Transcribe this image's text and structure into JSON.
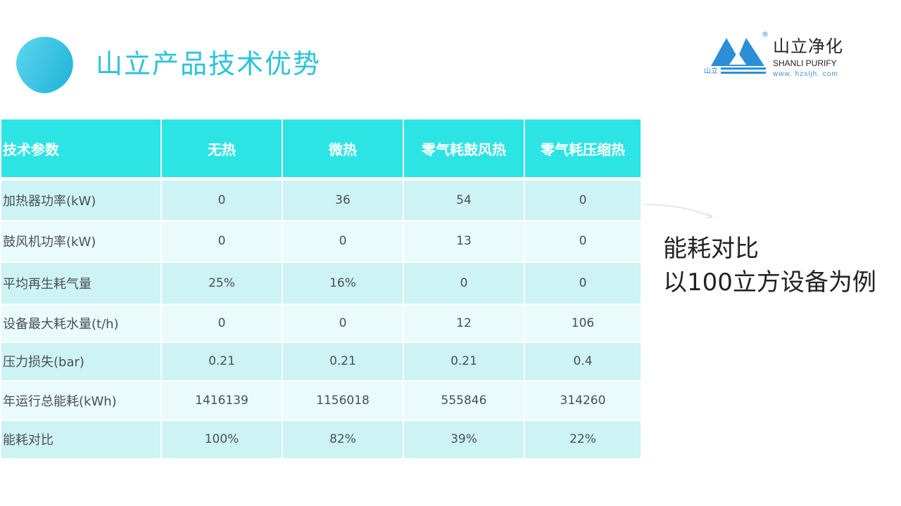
{
  "title": "山立产品技术优势",
  "logo": {
    "cn": "山立净化",
    "en": "SHANLI PURIFY",
    "url": "www. hzsljh. com",
    "small": "山立",
    "reg": "®"
  },
  "table": {
    "headers": [
      "技术参数",
      "无热",
      "微热",
      "零气耗鼓风热",
      "零气耗压缩热"
    ],
    "rows": [
      [
        "加热器功率(kW)",
        "0",
        "36",
        "54",
        "0"
      ],
      [
        "鼓风机功率(kW)",
        "0",
        "0",
        "13",
        "0"
      ],
      [
        "平均再生耗气量",
        "25%",
        "16%",
        "0",
        "0"
      ],
      [
        "设备最大耗水量(t/h)",
        "0",
        "0",
        "12",
        "106"
      ],
      [
        "压力损失(bar)",
        "0.21",
        "0.21",
        "0.21",
        "0.4"
      ],
      [
        "年运行总能耗(kWh)",
        "1416139",
        "1156018",
        "555846",
        "314260"
      ],
      [
        "能耗对比",
        "100%",
        "82%",
        "39%",
        "22%"
      ]
    ]
  },
  "note": {
    "line1": "能耗对比",
    "line2": "以100立方设备为例"
  },
  "colors": {
    "header": "#2de4e4",
    "row_odd": "#cdf3f4",
    "row_even": "#e9fbfb",
    "title": "#2cc3d8"
  }
}
